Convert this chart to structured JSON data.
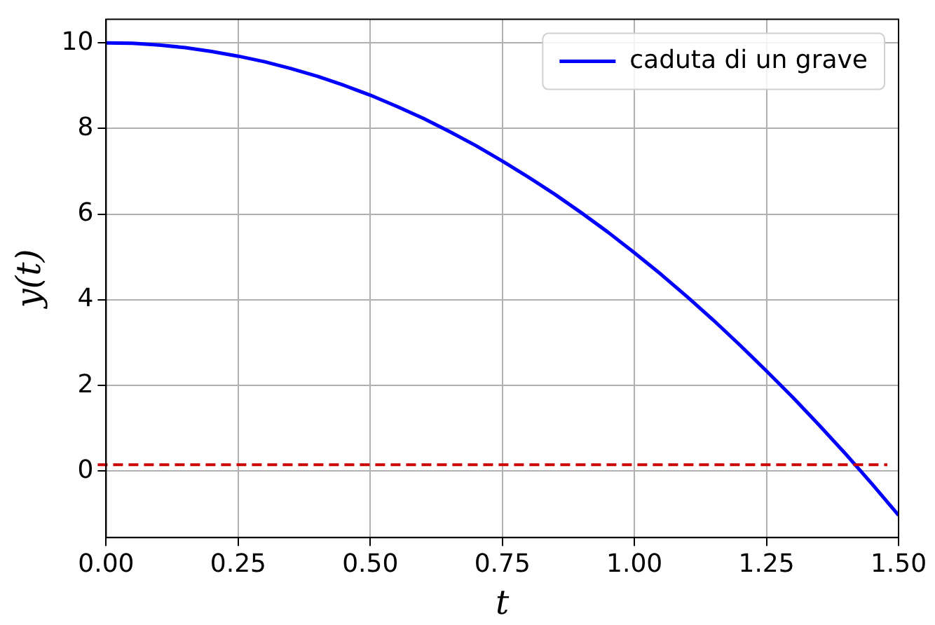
{
  "chart_data": {
    "type": "line",
    "xlabel": "t",
    "ylabel": "y(t)",
    "series": [
      {
        "name": "caduta di un grave",
        "color": "#0000ff",
        "x": [
          0,
          0.05,
          0.1,
          0.15,
          0.2,
          0.25,
          0.3,
          0.35,
          0.4,
          0.45,
          0.5,
          0.55,
          0.6,
          0.65,
          0.7,
          0.75,
          0.8,
          0.85,
          0.9,
          0.95,
          1.0,
          1.05,
          1.1,
          1.15,
          1.2,
          1.25,
          1.3,
          1.35,
          1.4,
          1.45,
          1.5
        ],
        "values": [
          10,
          9.99,
          9.95,
          9.89,
          9.8,
          9.69,
          9.56,
          9.4,
          9.22,
          9.01,
          8.78,
          8.52,
          8.24,
          7.93,
          7.6,
          7.24,
          6.86,
          6.46,
          6.03,
          5.58,
          5.1,
          4.6,
          4.07,
          3.52,
          2.94,
          2.34,
          1.72,
          1.07,
          0.4,
          -0.3,
          -1.03
        ]
      }
    ],
    "ref_lines": [
      {
        "axis": "y",
        "value": 0.15,
        "color": "#cc0000",
        "line_style": "dashed"
      }
    ],
    "xlim": [
      0,
      1.5
    ],
    "xticks": [
      {
        "value": 0,
        "label": "0.00"
      },
      {
        "value": 0.25,
        "label": "0.25"
      },
      {
        "value": 0.5,
        "label": "0.50"
      },
      {
        "value": 0.75,
        "label": "0.75"
      },
      {
        "value": 1,
        "label": "1.00"
      },
      {
        "value": 1.25,
        "label": "1.25"
      },
      {
        "value": 1.5,
        "label": "1.50"
      }
    ],
    "ylim": [
      -1.55,
      10.55
    ],
    "yticks": [
      0,
      2,
      4,
      6,
      8,
      10
    ],
    "grid": true,
    "legend": "top right",
    "marker": "none",
    "line_style": "solid"
  }
}
